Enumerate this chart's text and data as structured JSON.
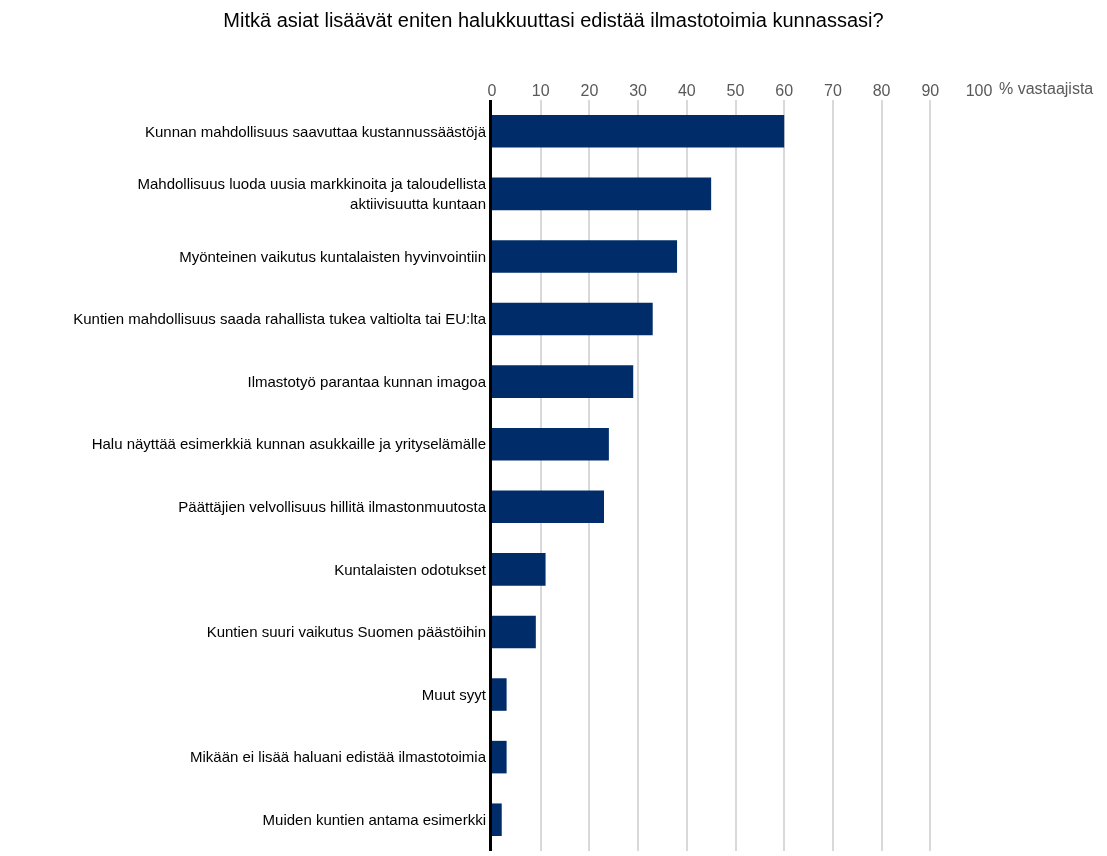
{
  "chart_data": {
    "type": "bar",
    "orientation": "horizontal",
    "title": "Mitkä asiat lisäävät eniten halukkuuttasi edistää ilmastotoimia kunnassasi?",
    "xlabel": "% vastaajista",
    "categories": [
      "Kunnan mahdollisuus saavuttaa kustannussäästöjä",
      "Mahdollisuus luoda uusia markkinoita ja taloudellista\naktiivisuutta kuntaan",
      "Myönteinen vaikutus kuntalaisten hyvinvointiin",
      "Kuntien mahdollisuus saada rahallista tukea valtiolta tai EU:lta",
      "Ilmastotyö parantaa kunnan imagoa",
      "Halu näyttää esimerkkiä kunnan asukkaille ja yrityselämälle",
      "Päättäjien velvollisuus hillitä ilmastonmuutosta",
      "Kuntalaisten odotukset",
      "Kuntien suuri vaikutus Suomen päästöihin",
      "Muut syyt",
      "Mikään ei lisää haluani edistää ilmastotoimia",
      "Muiden kuntien antama esimerkki"
    ],
    "values": [
      60,
      45,
      38,
      33,
      29,
      24,
      23,
      11,
      9,
      3,
      3,
      2
    ],
    "color": "#002d6a",
    "xlim": [
      0,
      100
    ],
    "xticks": [
      0,
      10,
      20,
      30,
      40,
      50,
      60,
      70,
      80,
      90,
      100
    ],
    "grid": "x"
  }
}
